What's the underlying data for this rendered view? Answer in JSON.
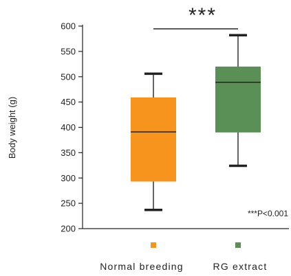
{
  "chart_data": {
    "type": "box",
    "ylabel": "Body weight (g)",
    "ylim": [
      200,
      600
    ],
    "yticks": [
      200,
      250,
      300,
      350,
      400,
      450,
      500,
      550,
      600
    ],
    "categories": [
      "Normal breeding",
      "RG extract"
    ],
    "boxes": [
      {
        "category": "Normal breeding",
        "color": "#F7941D",
        "min": 237,
        "q1": 293,
        "median": 391,
        "q3": 459,
        "max": 506
      },
      {
        "category": "RG extract",
        "color": "#5A8F55",
        "min": 324,
        "q1": 390,
        "median": 489,
        "q3": 520,
        "max": 582
      }
    ],
    "significance": {
      "label": "***",
      "between": [
        "Normal breeding",
        "RG extract"
      ]
    },
    "annotation": "***P<0.001",
    "grid": false
  }
}
